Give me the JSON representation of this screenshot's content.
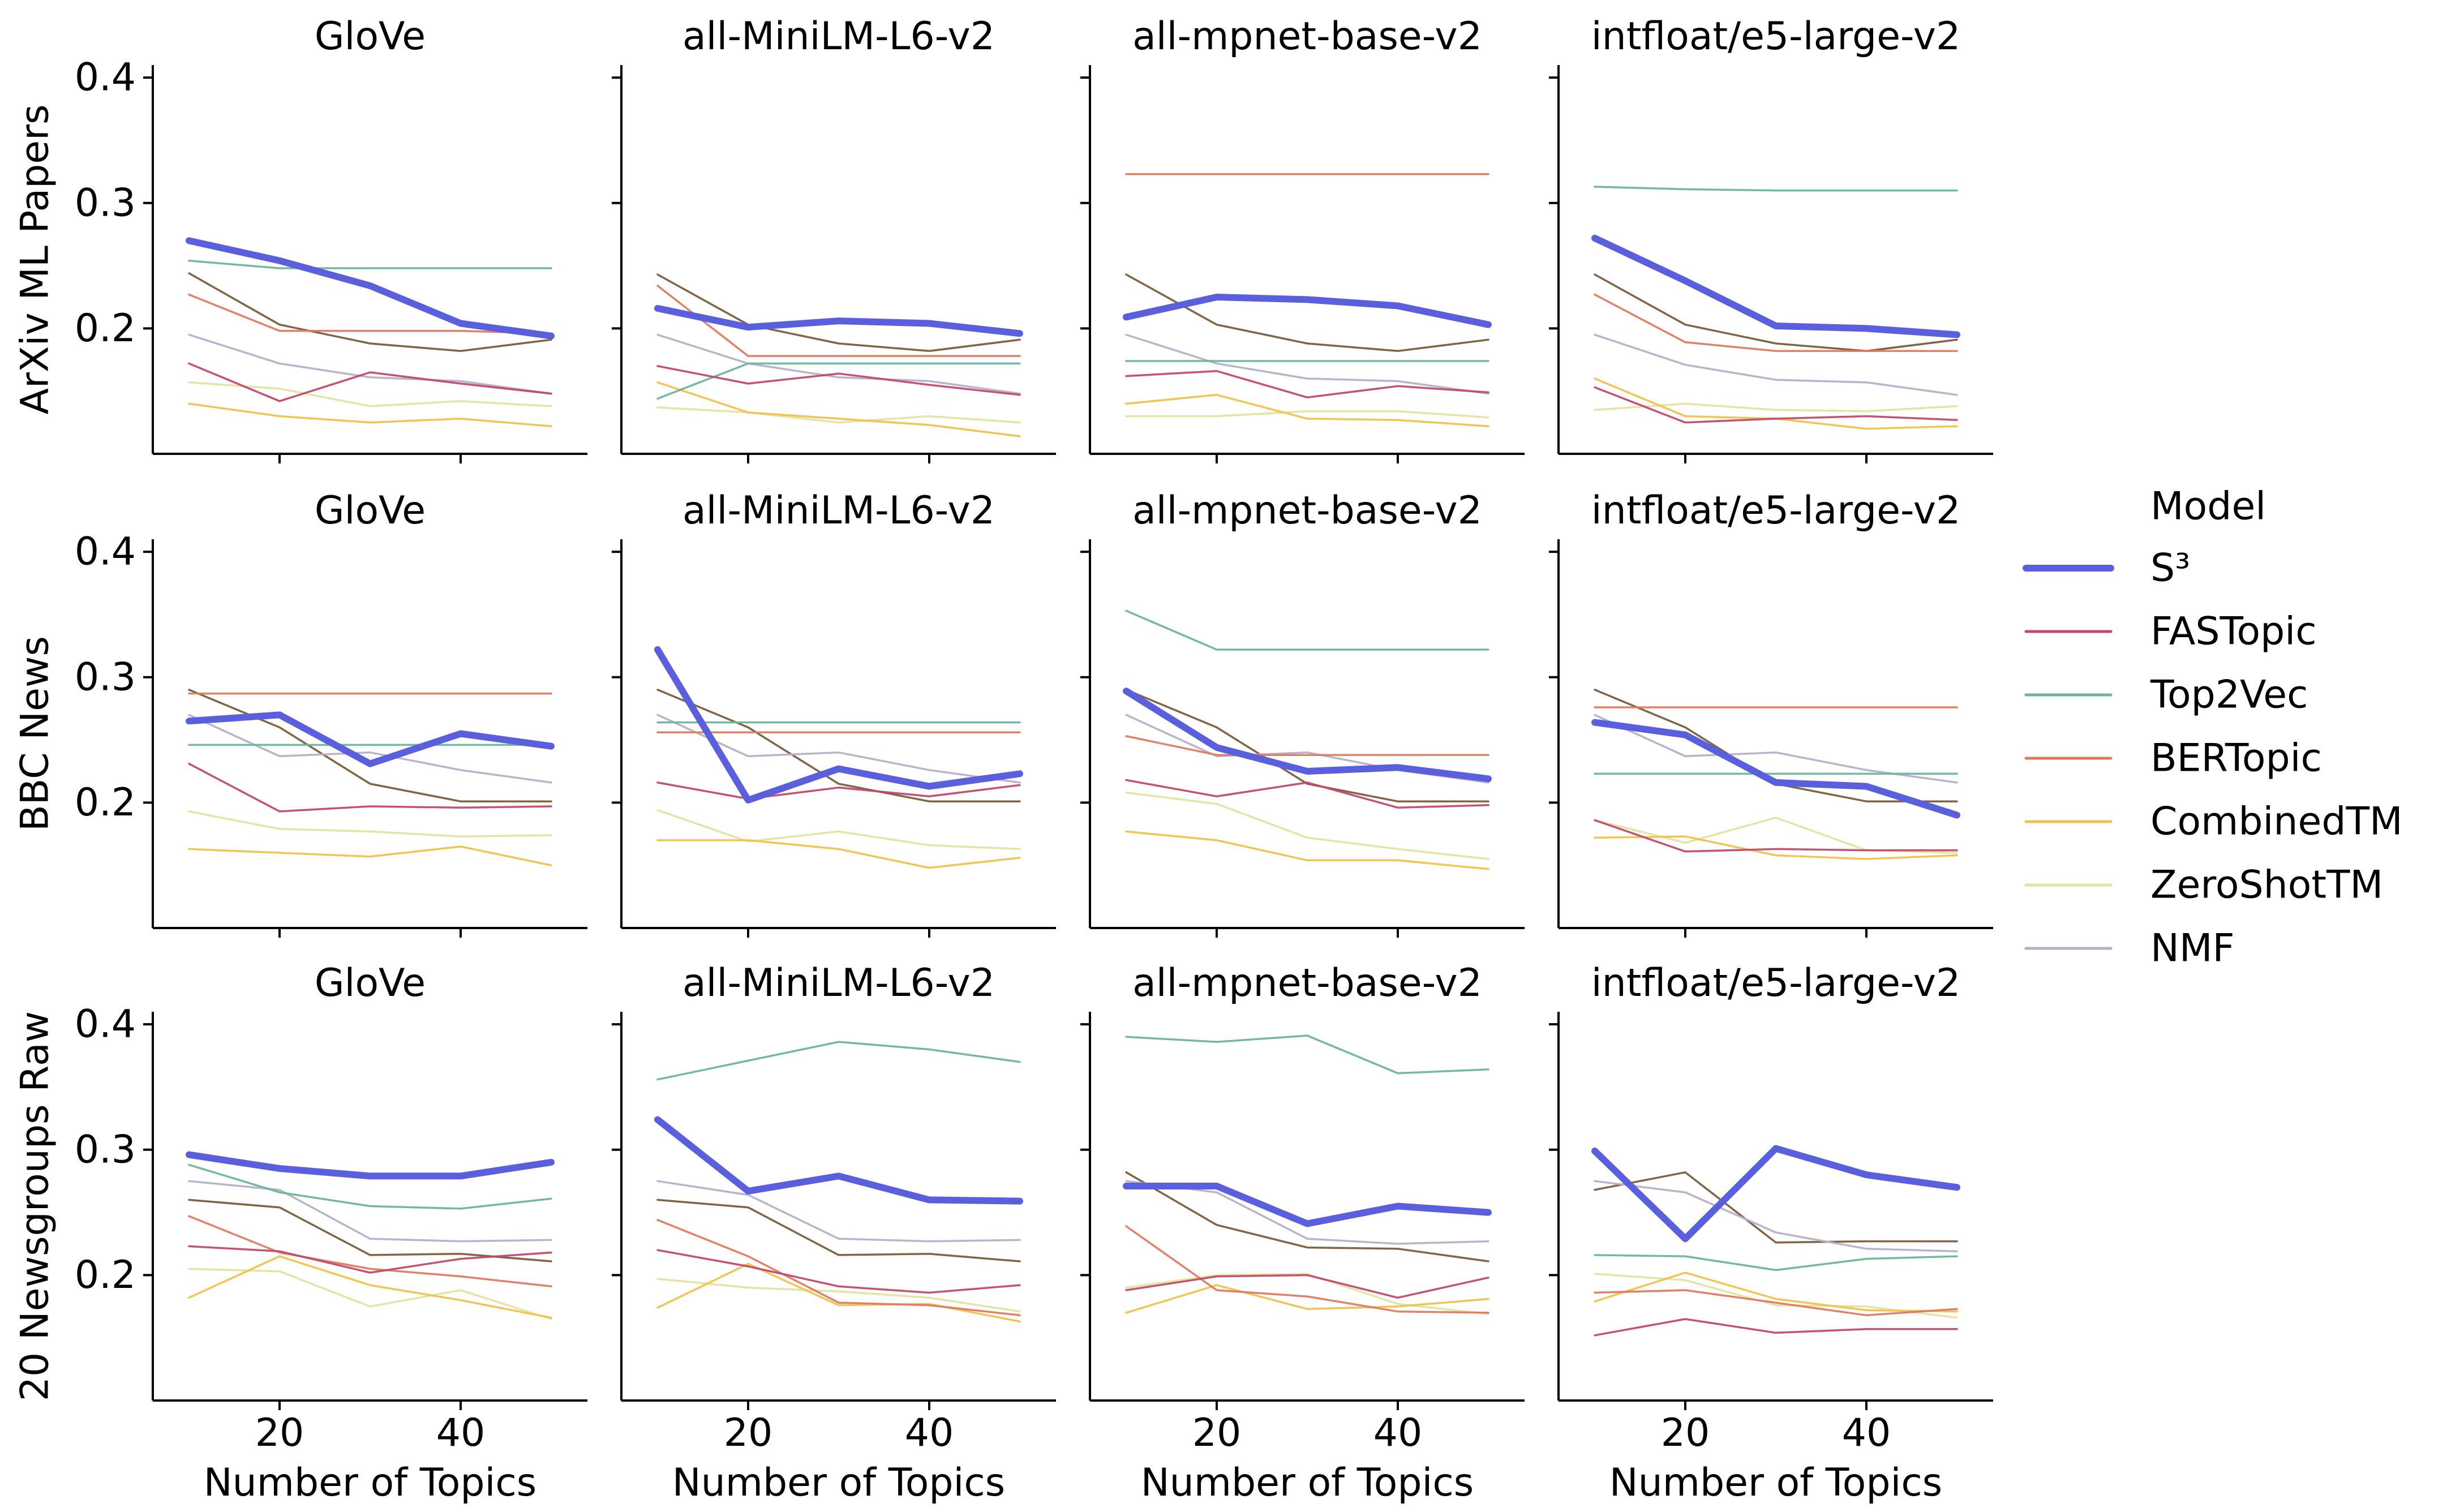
{
  "chart_data": {
    "type": "line",
    "x_label": "Number of Topics",
    "x_ticks": [
      20,
      40
    ],
    "y_ticks": [
      0.2,
      0.3,
      0.4
    ],
    "y_tick_labels": [
      "0.2",
      "0.3",
      "0.4"
    ],
    "x_range": [
      6,
      54
    ],
    "y_range": [
      0.1,
      0.41
    ],
    "grid": false,
    "legend_position": "right",
    "x": [
      10,
      20,
      30,
      40,
      50
    ],
    "legend": {
      "title": "Model",
      "entries": [
        {
          "key": "s3",
          "label": "S³",
          "color": "#5a5fdd",
          "width": 12
        },
        {
          "key": "fastopic",
          "label": "FASTopic",
          "color": "#c3486a",
          "width": 3.5
        },
        {
          "key": "top2vec",
          "label": "Top2Vec",
          "color": "#6db49a",
          "width": 3.5
        },
        {
          "key": "bertopic",
          "label": "BERTopic",
          "color": "#e07a5f",
          "width": 3.5
        },
        {
          "key": "combinedtm",
          "label": "CombinedTM",
          "color": "#f0c24a",
          "width": 3.5
        },
        {
          "key": "zeroshottm",
          "label": "ZeroShotTM",
          "color": "#e3e3a0",
          "width": 3.5
        },
        {
          "key": "nmf",
          "label": "NMF",
          "color": "#b5afca",
          "width": 3.5
        }
      ]
    },
    "extra_series_colors": {
      "brown": "#7a5c3a"
    },
    "rows": [
      {
        "dataset": "ArXiv ML Papers",
        "panels": [
          {
            "title": "GloVe",
            "series": {
              "s3": [
                0.27,
                0.254,
                0.234,
                0.204,
                0.194
              ],
              "fastopic": [
                0.172,
                0.142,
                0.165,
                0.156,
                0.148
              ],
              "top2vec": [
                0.254,
                0.248,
                0.248,
                0.248,
                0.248
              ],
              "bertopic": [
                0.227,
                0.198,
                0.198,
                0.198,
                0.196
              ],
              "combinedtm": [
                0.14,
                0.13,
                0.125,
                0.128,
                0.122
              ],
              "zeroshottm": [
                0.157,
                0.152,
                0.138,
                0.142,
                0.138
              ],
              "nmf": [
                0.195,
                0.172,
                0.161,
                0.158,
                0.148
              ],
              "brown": [
                0.244,
                0.203,
                0.188,
                0.182,
                0.191
              ]
            }
          },
          {
            "title": "all-MiniLM-L6-v2",
            "series": {
              "s3": [
                0.216,
                0.201,
                0.206,
                0.204,
                0.196
              ],
              "fastopic": [
                0.17,
                0.156,
                0.164,
                0.155,
                0.147
              ],
              "top2vec": [
                0.144,
                0.172,
                0.172,
                0.172,
                0.172
              ],
              "bertopic": [
                0.234,
                0.178,
                0.178,
                0.178,
                0.178
              ],
              "combinedtm": [
                0.157,
                0.133,
                0.128,
                0.123,
                0.114
              ],
              "zeroshottm": [
                0.137,
                0.133,
                0.125,
                0.13,
                0.125
              ],
              "nmf": [
                0.195,
                0.172,
                0.161,
                0.158,
                0.148
              ],
              "brown": [
                0.243,
                0.203,
                0.188,
                0.182,
                0.191
              ]
            }
          },
          {
            "title": "all-mpnet-base-v2",
            "series": {
              "s3": [
                0.209,
                0.225,
                0.223,
                0.218,
                0.203
              ],
              "fastopic": [
                0.162,
                0.166,
                0.145,
                0.154,
                0.149
              ],
              "top2vec": [
                0.174,
                0.174,
                0.174,
                0.174,
                0.174
              ],
              "bertopic": [
                0.323,
                0.323,
                0.323,
                0.323,
                0.323
              ],
              "combinedtm": [
                0.14,
                0.147,
                0.128,
                0.127,
                0.122
              ],
              "zeroshottm": [
                0.13,
                0.13,
                0.134,
                0.134,
                0.129
              ],
              "nmf": [
                0.195,
                0.172,
                0.16,
                0.158,
                0.148
              ],
              "brown": [
                0.243,
                0.203,
                0.188,
                0.182,
                0.191
              ]
            }
          },
          {
            "title": "intfloat/e5-large-v2",
            "series": {
              "s3": [
                0.272,
                0.238,
                0.202,
                0.2,
                0.195
              ],
              "fastopic": [
                0.153,
                0.125,
                0.128,
                0.13,
                0.127
              ],
              "top2vec": [
                0.313,
                0.311,
                0.31,
                0.31,
                0.31
              ],
              "bertopic": [
                0.227,
                0.189,
                0.182,
                0.182,
                0.182
              ],
              "combinedtm": [
                0.16,
                0.13,
                0.128,
                0.12,
                0.122
              ],
              "zeroshottm": [
                0.135,
                0.14,
                0.135,
                0.134,
                0.138
              ],
              "nmf": [
                0.195,
                0.171,
                0.159,
                0.157,
                0.147
              ],
              "brown": [
                0.243,
                0.203,
                0.188,
                0.182,
                0.191
              ]
            }
          }
        ]
      },
      {
        "dataset": "BBC News",
        "panels": [
          {
            "title": "GloVe",
            "series": {
              "s3": [
                0.265,
                0.27,
                0.231,
                0.255,
                0.245
              ],
              "fastopic": [
                0.231,
                0.193,
                0.197,
                0.196,
                0.197
              ],
              "top2vec": [
                0.246,
                0.246,
                0.246,
                0.246,
                0.246
              ],
              "bertopic": [
                0.287,
                0.287,
                0.287,
                0.287,
                0.287
              ],
              "combinedtm": [
                0.163,
                0.16,
                0.157,
                0.165,
                0.15
              ],
              "zeroshottm": [
                0.193,
                0.179,
                0.177,
                0.173,
                0.174
              ],
              "nmf": [
                0.27,
                0.237,
                0.24,
                0.226,
                0.216
              ],
              "brown": [
                0.29,
                0.26,
                0.215,
                0.201,
                0.201
              ]
            }
          },
          {
            "title": "all-MiniLM-L6-v2",
            "series": {
              "s3": [
                0.322,
                0.202,
                0.227,
                0.213,
                0.223
              ],
              "fastopic": [
                0.216,
                0.203,
                0.212,
                0.205,
                0.214
              ],
              "top2vec": [
                0.264,
                0.264,
                0.264,
                0.264,
                0.264
              ],
              "bertopic": [
                0.256,
                0.256,
                0.256,
                0.256,
                0.256
              ],
              "combinedtm": [
                0.17,
                0.17,
                0.163,
                0.148,
                0.156
              ],
              "zeroshottm": [
                0.194,
                0.169,
                0.177,
                0.166,
                0.163
              ],
              "nmf": [
                0.27,
                0.237,
                0.24,
                0.226,
                0.216
              ],
              "brown": [
                0.29,
                0.26,
                0.215,
                0.201,
                0.201
              ]
            }
          },
          {
            "title": "all-mpnet-base-v2",
            "series": {
              "s3": [
                0.289,
                0.244,
                0.225,
                0.228,
                0.219
              ],
              "fastopic": [
                0.218,
                0.205,
                0.216,
                0.196,
                0.198
              ],
              "top2vec": [
                0.353,
                0.322,
                0.322,
                0.322,
                0.322
              ],
              "bertopic": [
                0.253,
                0.238,
                0.238,
                0.238,
                0.238
              ],
              "combinedtm": [
                0.177,
                0.17,
                0.154,
                0.154,
                0.147
              ],
              "zeroshottm": [
                0.208,
                0.199,
                0.172,
                0.163,
                0.155
              ],
              "nmf": [
                0.27,
                0.237,
                0.24,
                0.226,
                0.216
              ],
              "brown": [
                0.29,
                0.26,
                0.215,
                0.201,
                0.201
              ]
            }
          },
          {
            "title": "intfloat/e5-large-v2",
            "series": {
              "s3": [
                0.264,
                0.254,
                0.216,
                0.213,
                0.19
              ],
              "fastopic": [
                0.186,
                0.161,
                0.163,
                0.162,
                0.162
              ],
              "top2vec": [
                0.223,
                0.223,
                0.223,
                0.223,
                0.223
              ],
              "bertopic": [
                0.276,
                0.276,
                0.276,
                0.276,
                0.276
              ],
              "combinedtm": [
                0.172,
                0.173,
                0.158,
                0.155,
                0.158
              ],
              "zeroshottm": [
                0.186,
                0.168,
                0.188,
                0.162,
                0.16
              ],
              "nmf": [
                0.27,
                0.237,
                0.24,
                0.226,
                0.216
              ],
              "brown": [
                0.29,
                0.26,
                0.215,
                0.201,
                0.201
              ]
            }
          }
        ]
      },
      {
        "dataset": "20 Newsgroups Raw",
        "panels": [
          {
            "title": "GloVe",
            "series": {
              "s3": [
                0.296,
                0.285,
                0.279,
                0.279,
                0.29
              ],
              "fastopic": [
                0.223,
                0.219,
                0.202,
                0.213,
                0.218
              ],
              "top2vec": [
                0.288,
                0.266,
                0.255,
                0.253,
                0.261
              ],
              "bertopic": [
                0.247,
                0.218,
                0.205,
                0.199,
                0.191
              ],
              "combinedtm": [
                0.182,
                0.215,
                0.192,
                0.18,
                0.166
              ],
              "zeroshottm": [
                0.205,
                0.203,
                0.175,
                0.188,
                0.165
              ],
              "nmf": [
                0.275,
                0.268,
                0.229,
                0.227,
                0.228
              ],
              "brown": [
                0.26,
                0.254,
                0.216,
                0.217,
                0.211
              ]
            }
          },
          {
            "title": "all-MiniLM-L6-v2",
            "series": {
              "s3": [
                0.324,
                0.267,
                0.279,
                0.26,
                0.259
              ],
              "fastopic": [
                0.22,
                0.207,
                0.191,
                0.186,
                0.192
              ],
              "top2vec": [
                0.356,
                0.371,
                0.386,
                0.38,
                0.37
              ],
              "bertopic": [
                0.244,
                0.215,
                0.178,
                0.176,
                0.168
              ],
              "combinedtm": [
                0.174,
                0.209,
                0.176,
                0.177,
                0.163
              ],
              "zeroshottm": [
                0.197,
                0.19,
                0.187,
                0.182,
                0.171
              ],
              "nmf": [
                0.275,
                0.264,
                0.229,
                0.227,
                0.228
              ],
              "brown": [
                0.26,
                0.254,
                0.216,
                0.217,
                0.211
              ]
            }
          },
          {
            "title": "all-mpnet-base-v2",
            "series": {
              "s3": [
                0.271,
                0.271,
                0.241,
                0.255,
                0.25
              ],
              "fastopic": [
                0.188,
                0.199,
                0.2,
                0.182,
                0.198
              ],
              "top2vec": [
                0.39,
                0.386,
                0.391,
                0.361,
                0.364
              ],
              "bertopic": [
                0.239,
                0.188,
                0.183,
                0.171,
                0.17
              ],
              "combinedtm": [
                0.17,
                0.192,
                0.173,
                0.175,
                0.181
              ],
              "zeroshottm": [
                0.19,
                0.2,
                0.201,
                0.177,
                0.169
              ],
              "nmf": [
                0.275,
                0.266,
                0.229,
                0.225,
                0.227
              ],
              "brown": [
                0.282,
                0.24,
                0.222,
                0.221,
                0.211
              ]
            }
          },
          {
            "title": "intfloat/e5-large-v2",
            "series": {
              "s3": [
                0.299,
                0.229,
                0.301,
                0.28,
                0.27
              ],
              "fastopic": [
                0.152,
                0.165,
                0.154,
                0.157,
                0.157
              ],
              "top2vec": [
                0.216,
                0.215,
                0.204,
                0.213,
                0.215
              ],
              "bertopic": [
                0.186,
                0.188,
                0.178,
                0.168,
                0.173
              ],
              "combinedtm": [
                0.179,
                0.202,
                0.181,
                0.172,
                0.171
              ],
              "zeroshottm": [
                0.201,
                0.196,
                0.176,
                0.175,
                0.166
              ],
              "nmf": [
                0.275,
                0.266,
                0.234,
                0.221,
                0.219
              ],
              "brown": [
                0.268,
                0.282,
                0.226,
                0.227,
                0.227
              ]
            }
          }
        ]
      }
    ]
  }
}
